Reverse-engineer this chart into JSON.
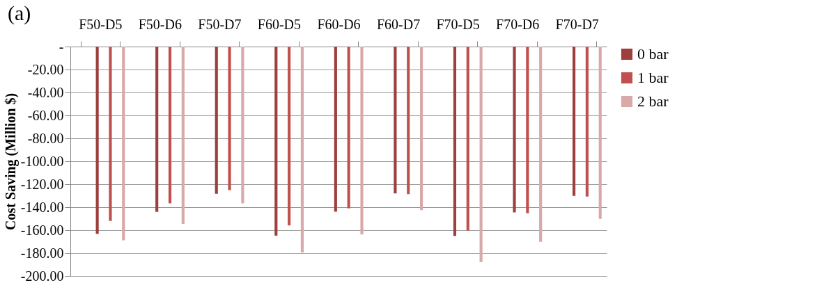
{
  "chart_data": {
    "type": "bar",
    "title": "(a)",
    "ylabel": "Cost Saving (Million  $)",
    "categories": [
      "F50-D5",
      "F50-D6",
      "F50-D7",
      "F60-D5",
      "F60-D6",
      "F60-D7",
      "F70-D5",
      "F70-D6",
      "F70-D7"
    ],
    "series": [
      {
        "name": "0 bar",
        "color": "#9c3f3d",
        "values": [
          -163.3,
          -144.1,
          -128.4,
          -164.9,
          -143.9,
          -128.0,
          -165.1,
          -144.6,
          -130.2
        ]
      },
      {
        "name": "1 bar",
        "color": "#c0504d",
        "values": [
          -151.9,
          -136.7,
          -125.1,
          -155.9,
          -141.1,
          -128.7,
          -160.5,
          -145.3,
          -130.8
        ]
      },
      {
        "name": "2 bar",
        "color": "#d9a8a8",
        "values": [
          -168.9,
          -154.6,
          -136.7,
          -179.6,
          -163.8,
          -142.6,
          -187.9,
          -170.2,
          -150.1
        ]
      }
    ],
    "ylim": [
      -200,
      0
    ],
    "yticks": [
      {
        "value": 0,
        "label": "-"
      },
      {
        "value": -20,
        "label": "-20.00"
      },
      {
        "value": -40,
        "label": "-40.00"
      },
      {
        "value": -60,
        "label": "-60.00"
      },
      {
        "value": -80,
        "label": "-80.00"
      },
      {
        "value": -100,
        "label": "-100.00"
      },
      {
        "value": -120,
        "label": "-120.00"
      },
      {
        "value": -140,
        "label": "-140.00"
      },
      {
        "value": -160,
        "label": "-160.00"
      },
      {
        "value": -180,
        "label": "-180.00"
      },
      {
        "value": -200,
        "label": "-200.00"
      }
    ],
    "grid": "y",
    "legend": "right"
  }
}
